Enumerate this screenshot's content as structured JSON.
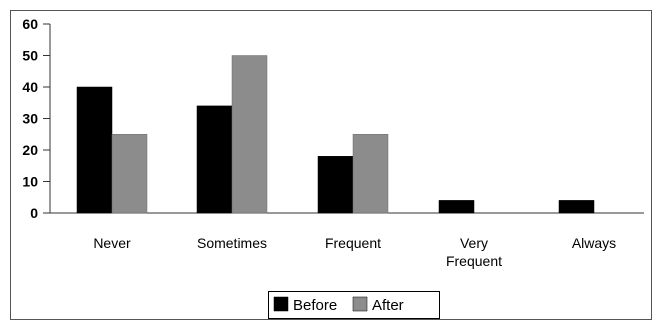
{
  "colors": {
    "before": "#000000",
    "after": "#8c8c8c",
    "frame": "#555555",
    "axis": "#333333",
    "text": "#000000"
  },
  "chart_data": {
    "type": "bar",
    "title": "",
    "xlabel": "",
    "ylabel": "",
    "ylim": [
      0,
      60
    ],
    "yticks": [
      0,
      10,
      20,
      30,
      40,
      50,
      60
    ],
    "categories": [
      "Never",
      "Sometimes",
      "Frequent",
      "Very Frequent",
      "Always"
    ],
    "category_lines": [
      [
        "Never"
      ],
      [
        "Sometimes"
      ],
      [
        "Frequent"
      ],
      [
        "Very",
        "Frequent"
      ],
      [
        "Always"
      ]
    ],
    "series": [
      {
        "name": "Before",
        "values": [
          40,
          34,
          18,
          4,
          4
        ]
      },
      {
        "name": "After",
        "values": [
          25,
          50,
          25,
          0,
          0
        ]
      }
    ],
    "grid": false,
    "legend_position": "bottom-center"
  }
}
